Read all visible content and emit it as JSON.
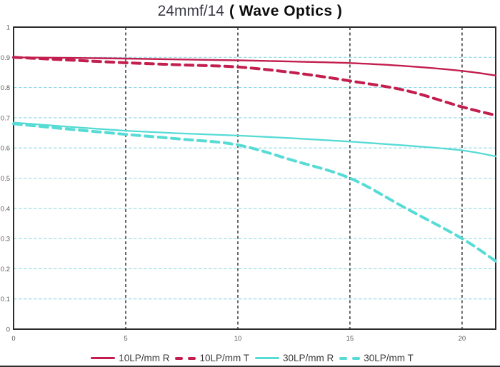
{
  "title": {
    "lens": "24mmf/14",
    "subtitle": "( Wave Optics )"
  },
  "colors": {
    "red": "#c21e4e",
    "cyan": "#57dbd5",
    "h_grid": "#8ed7e6",
    "v_grid": "#262626",
    "border": "#2b2b2b",
    "tick_text": "#595959",
    "legend_text": "#3a3a3a",
    "bottom_rule": "#2e2e2e"
  },
  "legend": [
    {
      "label": "10LP/mm R",
      "color_key": "red",
      "style": "solid"
    },
    {
      "label": "10LP/mm T",
      "color_key": "red",
      "style": "dashed"
    },
    {
      "label": "30LP/mm R",
      "color_key": "cyan",
      "style": "solid"
    },
    {
      "label": "30LP/mm T",
      "color_key": "cyan",
      "style": "dashed"
    }
  ],
  "chart_data": {
    "type": "line",
    "title": "24mmf/14 ( Wave Optics )",
    "xlabel": "",
    "ylabel": "",
    "xlim": [
      0,
      21.5
    ],
    "ylim": [
      0,
      1
    ],
    "x_ticks": [
      0,
      5,
      10,
      15,
      20
    ],
    "x_tick_labels": [
      "0",
      "5",
      "10",
      "15",
      "20"
    ],
    "y_ticks": [
      0,
      0.1,
      0.2,
      0.3,
      0.4,
      0.5,
      0.6,
      0.7,
      0.8,
      0.9,
      1
    ],
    "y_tick_labels": [
      "0",
      "0.1",
      "0.2",
      "0.3",
      "0.4",
      "0.5",
      "0.6",
      "0.7",
      "0.8",
      "0.9",
      "1"
    ],
    "grid": {
      "horizontal": "light-blue dashed at every 0.1",
      "vertical": "black dashed at every 5"
    },
    "legend_position": "bottom-center",
    "x": [
      0,
      2.5,
      5,
      7.5,
      10,
      12.5,
      15,
      17.5,
      20,
      21.5
    ],
    "series": [
      {
        "name": "10LP/mm R",
        "color_key": "red",
        "style": "solid",
        "stroke_width": 2.4,
        "values": [
          0.9,
          0.898,
          0.896,
          0.893,
          0.89,
          0.886,
          0.881,
          0.871,
          0.855,
          0.84
        ]
      },
      {
        "name": "10LP/mm T",
        "color_key": "red",
        "style": "dashed",
        "stroke_width": 4,
        "values": [
          0.9,
          0.891,
          0.882,
          0.875,
          0.868,
          0.849,
          0.822,
          0.79,
          0.736,
          0.708
        ]
      },
      {
        "name": "30LP/mm R",
        "color_key": "cyan",
        "style": "solid",
        "stroke_width": 2.3,
        "values": [
          0.684,
          0.67,
          0.657,
          0.648,
          0.641,
          0.632,
          0.621,
          0.608,
          0.592,
          0.572
        ]
      },
      {
        "name": "30LP/mm T",
        "color_key": "cyan",
        "style": "dashed",
        "stroke_width": 4,
        "values": [
          0.68,
          0.662,
          0.645,
          0.629,
          0.61,
          0.558,
          0.5,
          0.4,
          0.3,
          0.225
        ]
      }
    ]
  }
}
